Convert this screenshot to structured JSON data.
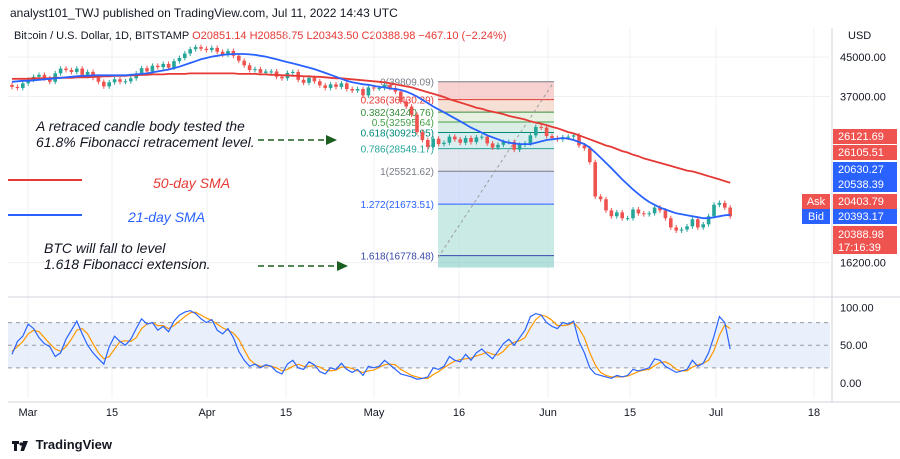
{
  "header": {
    "published": "analyst101_TWJ published on TradingView.com, Jul 11, 2022 14:43 UTC"
  },
  "legend": {
    "symbol": "Bitcoin / U.S. Dollar, 1D, BITSTAMP",
    "ohlc": "O20851.14 H20858.75 L20343.50 C20388.98 −467.10 (−2.24%)"
  },
  "currency": "USD",
  "footer": {
    "brand": "TradingView"
  },
  "annotations": {
    "retrace_line1": "A retraced candle body tested the",
    "retrace_line2": "61.8% Fibonacci retracement level.",
    "sma50": "50-day SMA",
    "sma21": "21-day SMA",
    "fall_line1": "BTC will fall to level",
    "fall_line2": "1.618 Fibonacci extension."
  },
  "colors": {
    "up": "#26a69a",
    "down": "#ef5350",
    "sma50": "#e53935",
    "sma21": "#2962ff",
    "stoch_k": "#2962ff",
    "stoch_d": "#ff9800",
    "arrow": "#1b5e20"
  },
  "chart_data": [
    {
      "type": "candlestick",
      "title": "Bitcoin / U.S. Dollar, 1D, BITSTAMP",
      "ylabel": "USD",
      "ylim": [
        14000,
        52000
      ],
      "y_ticks": [
        "45000.00",
        "37000.00",
        "16200.00"
      ],
      "x_ticks": [
        "Mar",
        "15",
        "Apr",
        "15",
        "May",
        "16",
        "Jun",
        "15",
        "Jul",
        "18"
      ],
      "price_labels": [
        {
          "value": "26121.69",
          "color": "#ef5350"
        },
        {
          "value": "26105.51",
          "color": "#ef5350"
        },
        {
          "value": "20630.27",
          "color": "#2962ff"
        },
        {
          "value": "20538.39",
          "color": "#2962ff"
        },
        {
          "label": "Ask",
          "value": "20403.79",
          "color": "#ef5350"
        },
        {
          "label": "Bid",
          "value": "20393.17",
          "color": "#2962ff"
        },
        {
          "value": "20388.98",
          "time": "17:16:39",
          "color": "#ef5350"
        }
      ],
      "fibonacci": [
        {
          "level": "0",
          "price": "39809.09"
        },
        {
          "level": "0.236",
          "price": "36430.29"
        },
        {
          "level": "0.382",
          "price": "34240.76"
        },
        {
          "level": "0.5",
          "price": "32595.64"
        },
        {
          "level": "0.618",
          "price": "30925.95"
        },
        {
          "level": "0.786",
          "price": "28549.17"
        },
        {
          "level": "1",
          "price": "25521.62"
        },
        {
          "level": "1.272",
          "price": "21673.51"
        },
        {
          "level": "1.618",
          "price": "16778.48"
        }
      ],
      "closes": [
        38800,
        38600,
        39500,
        40200,
        40800,
        41200,
        40500,
        39800,
        41500,
        42500,
        42200,
        41800,
        42500,
        41200,
        41800,
        40600,
        39800,
        38900,
        39700,
        40300,
        39800,
        39900,
        40500,
        41500,
        42600,
        41900,
        43100,
        42800,
        43500,
        42700,
        44100,
        44800,
        45800,
        46800,
        47300,
        46900,
        46600,
        47100,
        46200,
        45600,
        46400,
        45300,
        44200,
        43200,
        42200,
        42400,
        41600,
        41900,
        41900,
        40800,
        40500,
        41600,
        41800,
        40200,
        39600,
        40600,
        39900,
        39100,
        38600,
        39300,
        38800,
        39500,
        38400,
        38100,
        38400,
        37200,
        38700,
        38500,
        38600,
        39200,
        38600,
        37900,
        36100,
        35200,
        33800,
        31000,
        29800,
        28800,
        30000,
        29200,
        29400,
        30300,
        29900,
        29400,
        30100,
        29500,
        30200,
        30300,
        29300,
        28700,
        29100,
        29500,
        29500,
        28400,
        29100,
        29300,
        30500,
        31800,
        31700,
        30400,
        30100,
        29900,
        30200,
        30300,
        30500,
        29000,
        28600,
        26700,
        22500,
        22200,
        21000,
        20400,
        20800,
        20200,
        20200,
        21100,
        20700,
        20600,
        20700,
        21300,
        21000,
        20200,
        19300,
        19000,
        19100,
        19400,
        20100,
        19300,
        19600,
        20400,
        21600,
        21800,
        21300,
        20388.98
      ],
      "sma21": [
        39800,
        39900,
        40000,
        40000,
        40100,
        40200,
        40300,
        40400,
        40500,
        40600,
        40700,
        40800,
        40900,
        41000,
        41000,
        41100,
        41100,
        41100,
        41100,
        41100,
        41100,
        41100,
        41200,
        41300,
        41400,
        41500,
        41700,
        41900,
        42100,
        42300,
        42600,
        42900,
        43300,
        43700,
        44100,
        44500,
        44800,
        45100,
        45300,
        45500,
        45600,
        45700,
        45700,
        45700,
        45600,
        45500,
        45300,
        45100,
        44800,
        44500,
        44200,
        43900,
        43600,
        43300,
        43000,
        42700,
        42400,
        42000,
        41600,
        41200,
        40800,
        40400,
        40000,
        39700,
        39500,
        39300,
        39200,
        39000,
        38800,
        38700,
        38500,
        38400,
        38200,
        37900,
        37500,
        37000,
        36400,
        35800,
        35200,
        34700,
        34200,
        33700,
        33200,
        32700,
        32200,
        31700,
        31300,
        30900,
        30500,
        30200,
        29900,
        29600,
        29400,
        29300,
        29200,
        29200,
        29200,
        29400,
        29600,
        29800,
        29900,
        30000,
        30100,
        30000,
        29800,
        29500,
        29200,
        28700,
        28000,
        27300,
        26600,
        25900,
        25200,
        24500,
        23900,
        23300,
        22800,
        22300,
        21900,
        21600,
        21300,
        21100,
        20900,
        20700,
        20600,
        20500,
        20400,
        20300,
        20200,
        20200,
        20300,
        20400,
        20500,
        20550
      ],
      "sma50": [
        40400,
        40400,
        40400,
        40400,
        40500,
        40500,
        40500,
        40500,
        40600,
        40600,
        40600,
        40600,
        40700,
        40700,
        40700,
        40800,
        40800,
        40900,
        40900,
        41000,
        41000,
        41000,
        41100,
        41100,
        41200,
        41200,
        41300,
        41300,
        41300,
        41400,
        41400,
        41400,
        41400,
        41500,
        41500,
        41500,
        41500,
        41500,
        41500,
        41500,
        41500,
        41500,
        41400,
        41400,
        41400,
        41400,
        41300,
        41300,
        41200,
        41200,
        41100,
        41100,
        41000,
        41000,
        40900,
        40900,
        40800,
        40800,
        40700,
        40600,
        40500,
        40500,
        40400,
        40300,
        40200,
        40100,
        40000,
        39900,
        39800,
        39700,
        39500,
        39300,
        39100,
        38900,
        38700,
        38400,
        38100,
        37800,
        37500,
        37200,
        36900,
        36500,
        36200,
        35900,
        35600,
        35300,
        35000,
        34800,
        34500,
        34300,
        34100,
        33900,
        33600,
        33400,
        33200,
        33000,
        32700,
        32500,
        32300,
        32100,
        31800,
        31600,
        31300,
        31000,
        30800,
        30500,
        30200,
        29900,
        29600,
        29300,
        29000,
        28800,
        28500,
        28200,
        28000,
        27700,
        27500,
        27200,
        27000,
        26800,
        26600,
        26400,
        26200,
        26000,
        25800,
        25600,
        25500,
        25300,
        25100,
        24900,
        24700,
        24500,
        24300,
        24100
      ]
    },
    {
      "type": "line",
      "title": "",
      "ylim": [
        -20,
        110
      ],
      "y_ticks": [
        "100.00",
        "50.00",
        "0.00"
      ],
      "bands": [
        20,
        50,
        80
      ],
      "series": [
        {
          "key": "k",
          "values": [
            38,
            55,
            62,
            78,
            72,
            60,
            52,
            48,
            35,
            40,
            58,
            70,
            82,
            65,
            50,
            40,
            32,
            25,
            48,
            62,
            55,
            50,
            58,
            72,
            85,
            78,
            80,
            70,
            75,
            68,
            82,
            90,
            94,
            96,
            92,
            85,
            80,
            84,
            70,
            65,
            72,
            60,
            42,
            30,
            22,
            25,
            20,
            24,
            22,
            15,
            12,
            25,
            30,
            20,
            18,
            28,
            24,
            15,
            12,
            20,
            18,
            26,
            18,
            14,
            18,
            10,
            22,
            20,
            22,
            30,
            24,
            18,
            12,
            10,
            8,
            5,
            6,
            8,
            20,
            18,
            22,
            35,
            30,
            28,
            38,
            30,
            40,
            45,
            38,
            32,
            42,
            52,
            58,
            50,
            60,
            70,
            88,
            92,
            90,
            80,
            75,
            72,
            80,
            78,
            82,
            55,
            40,
            20,
            12,
            10,
            8,
            6,
            10,
            8,
            10,
            18,
            16,
            18,
            20,
            32,
            30,
            22,
            18,
            14,
            16,
            18,
            30,
            22,
            26,
            40,
            62,
            88,
            80,
            45
          ]
        },
        {
          "key": "d",
          "values": [
            42,
            48,
            55,
            65,
            70,
            68,
            60,
            52,
            45,
            42,
            48,
            58,
            70,
            72,
            65,
            52,
            40,
            32,
            35,
            45,
            55,
            56,
            55,
            60,
            72,
            78,
            80,
            76,
            76,
            72,
            76,
            82,
            88,
            93,
            94,
            90,
            86,
            83,
            78,
            73,
            70,
            66,
            58,
            44,
            31,
            25,
            22,
            23,
            22,
            20,
            16,
            18,
            22,
            25,
            22,
            22,
            23,
            21,
            17,
            16,
            17,
            21,
            21,
            19,
            16,
            14,
            16,
            17,
            21,
            24,
            25,
            24,
            18,
            14,
            10,
            8,
            6,
            6,
            11,
            15,
            20,
            25,
            29,
            31,
            32,
            33,
            36,
            38,
            41,
            38,
            37,
            42,
            50,
            54,
            56,
            60,
            73,
            84,
            90,
            88,
            83,
            76,
            76,
            77,
            80,
            72,
            60,
            40,
            24,
            14,
            10,
            8,
            8,
            8,
            9,
            12,
            15,
            17,
            18,
            23,
            27,
            28,
            24,
            18,
            16,
            16,
            21,
            24,
            26,
            30,
            43,
            63,
            77,
            72
          ]
        }
      ]
    }
  ]
}
